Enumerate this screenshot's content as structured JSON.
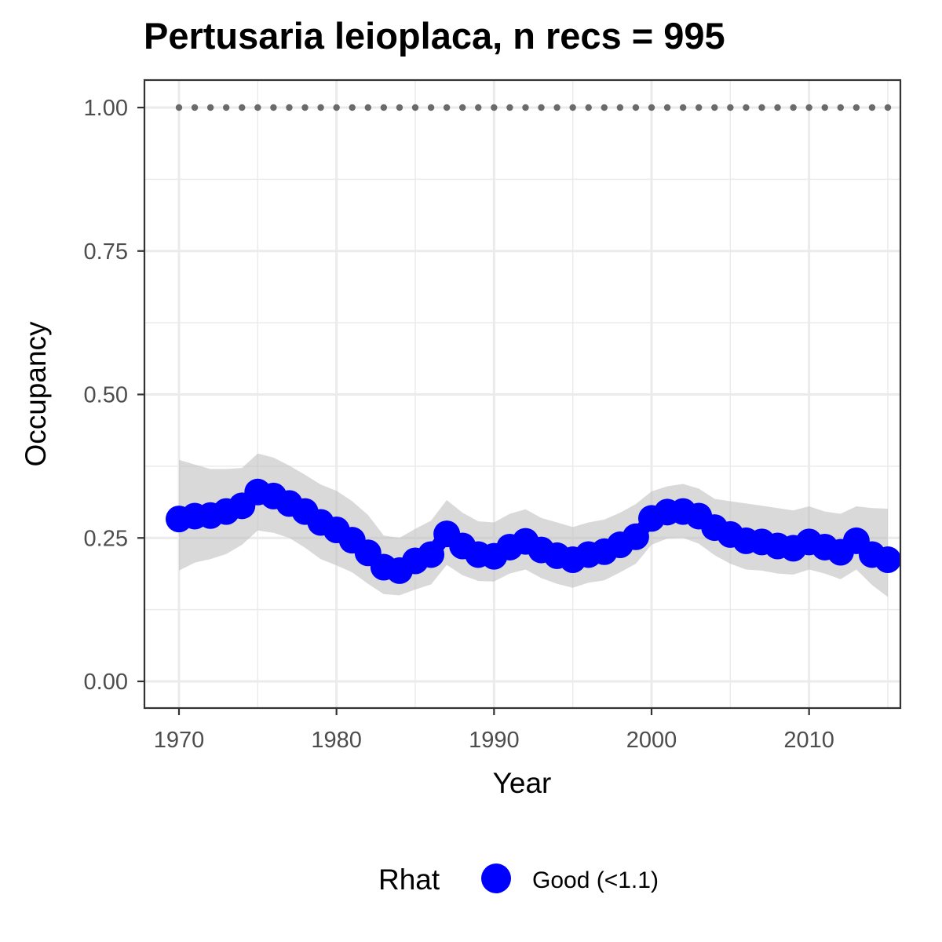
{
  "chart_data": {
    "type": "line",
    "title": "Pertusaria leioplaca, n recs = 995",
    "xlabel": "Year",
    "ylabel": "Occupancy",
    "xlim": [
      1967.8,
      1917.2
    ],
    "ylim": [
      -0.0475,
      1.0475
    ],
    "x_ticks": [
      1970,
      1980,
      1990,
      2000,
      2010
    ],
    "x_tick_labels": [
      "1970",
      "1980",
      "1990",
      "2000",
      "2010"
    ],
    "y_ticks": [
      0,
      0.25,
      0.5,
      0.75,
      1
    ],
    "y_tick_labels": [
      "0.00",
      "0.25",
      "0.50",
      "0.75",
      "1.00"
    ],
    "grid": true,
    "legend": {
      "title": "Rhat",
      "placement": "bottom",
      "entries": [
        {
          "label": "Good (<1.1)",
          "color": "#0000ff"
        }
      ]
    },
    "x": [
      1970,
      1971,
      1972,
      1973,
      1974,
      1975,
      1976,
      1977,
      1978,
      1979,
      1980,
      1981,
      1982,
      1983,
      1984,
      1985,
      1986,
      1987,
      1988,
      1989,
      1990,
      1991,
      1992,
      1993,
      1994,
      1995,
      1996,
      1997,
      1998,
      1999,
      2000,
      2001,
      2002,
      2003,
      2004,
      2005,
      2006,
      2007,
      2008,
      2009,
      2010,
      2011,
      2012,
      2013,
      2014,
      2015
    ],
    "series": [
      {
        "name": "Good (<1.1)",
        "color": "#0000ff",
        "values": [
          0.283,
          0.288,
          0.289,
          0.296,
          0.306,
          0.33,
          0.323,
          0.31,
          0.296,
          0.277,
          0.264,
          0.246,
          0.224,
          0.199,
          0.193,
          0.21,
          0.221,
          0.257,
          0.236,
          0.221,
          0.218,
          0.234,
          0.244,
          0.229,
          0.219,
          0.212,
          0.221,
          0.226,
          0.238,
          0.252,
          0.284,
          0.295,
          0.296,
          0.288,
          0.268,
          0.256,
          0.245,
          0.243,
          0.236,
          0.232,
          0.243,
          0.234,
          0.225,
          0.245,
          0.221,
          0.212
        ],
        "lower": [
          0.193,
          0.207,
          0.213,
          0.222,
          0.238,
          0.263,
          0.259,
          0.25,
          0.233,
          0.213,
          0.202,
          0.19,
          0.17,
          0.152,
          0.15,
          0.16,
          0.169,
          0.203,
          0.185,
          0.175,
          0.174,
          0.188,
          0.195,
          0.18,
          0.17,
          0.163,
          0.172,
          0.176,
          0.19,
          0.205,
          0.238,
          0.249,
          0.25,
          0.24,
          0.22,
          0.205,
          0.195,
          0.193,
          0.188,
          0.186,
          0.195,
          0.188,
          0.178,
          0.195,
          0.168,
          0.147
        ],
        "upper": [
          0.386,
          0.378,
          0.37,
          0.37,
          0.372,
          0.397,
          0.39,
          0.376,
          0.36,
          0.343,
          0.332,
          0.314,
          0.29,
          0.254,
          0.25,
          0.266,
          0.28,
          0.316,
          0.294,
          0.279,
          0.277,
          0.292,
          0.3,
          0.285,
          0.277,
          0.269,
          0.277,
          0.282,
          0.294,
          0.309,
          0.331,
          0.34,
          0.344,
          0.336,
          0.318,
          0.314,
          0.31,
          0.306,
          0.302,
          0.298,
          0.305,
          0.296,
          0.292,
          0.305,
          0.302,
          0.301
        ]
      },
      {
        "name": "",
        "color": "#6a6a6a",
        "style": "dotted",
        "values": [
          1,
          1,
          1,
          1,
          1,
          1,
          1,
          1,
          1,
          1,
          1,
          1,
          1,
          1,
          1,
          1,
          1,
          1,
          1,
          1,
          1,
          1,
          1,
          1,
          1,
          1,
          1,
          1,
          1,
          1,
          1,
          1,
          1,
          1,
          1,
          1,
          1,
          1,
          1,
          1,
          1,
          1,
          1,
          1,
          1,
          1
        ]
      }
    ]
  }
}
